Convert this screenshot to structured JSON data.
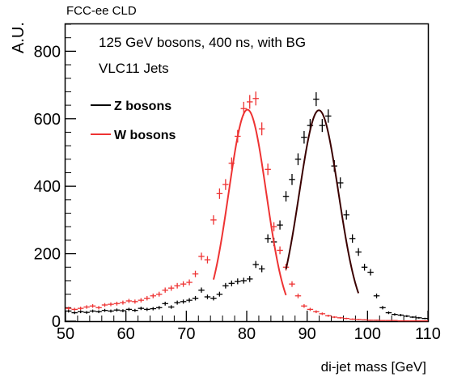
{
  "chart_data": {
    "type": "scatter",
    "header": "FCC-ee CLD",
    "xlabel": "di-jet mass [GeV]",
    "ylabel": "A.U.",
    "xlim": [
      50,
      110
    ],
    "ylim": [
      0,
      880
    ],
    "x_ticks": [
      50,
      60,
      70,
      80,
      90,
      100,
      110
    ],
    "y_ticks": [
      0,
      200,
      400,
      600,
      800
    ],
    "annotations": [
      "125 GeV bosons, 400 ns, with BG",
      "VLC11 Jets"
    ],
    "legend_position": "top-left",
    "bin_width": 1,
    "series": [
      {
        "name": "Z bosons",
        "color": "#000000",
        "fit_color": "#3a0000",
        "fit_range": [
          86.5,
          98.5
        ],
        "points": [
          [
            50.5,
            30
          ],
          [
            51.5,
            25
          ],
          [
            52.5,
            28
          ],
          [
            53.5,
            26
          ],
          [
            54.5,
            30
          ],
          [
            55.5,
            28
          ],
          [
            56.5,
            32
          ],
          [
            57.5,
            30
          ],
          [
            58.5,
            33
          ],
          [
            59.5,
            31
          ],
          [
            60.5,
            35
          ],
          [
            61.5,
            32
          ],
          [
            62.5,
            38
          ],
          [
            63.5,
            35
          ],
          [
            64.5,
            37
          ],
          [
            65.5,
            40
          ],
          [
            66.5,
            52
          ],
          [
            67.5,
            42
          ],
          [
            68.5,
            55
          ],
          [
            69.5,
            58
          ],
          [
            70.5,
            62
          ],
          [
            71.5,
            68
          ],
          [
            72.5,
            92
          ],
          [
            73.5,
            72
          ],
          [
            74.5,
            68
          ],
          [
            75.5,
            80
          ],
          [
            76.5,
            105
          ],
          [
            77.5,
            112
          ],
          [
            78.5,
            118
          ],
          [
            79.5,
            120
          ],
          [
            80.5,
            125
          ],
          [
            81.5,
            168
          ],
          [
            82.5,
            155
          ],
          [
            83.5,
            245
          ],
          [
            84.5,
            235
          ],
          [
            85.5,
            285
          ],
          [
            86.5,
            370
          ],
          [
            87.5,
            420
          ],
          [
            88.5,
            480
          ],
          [
            89.5,
            545
          ],
          [
            90.5,
            580
          ],
          [
            91.5,
            658
          ],
          [
            92.5,
            580
          ],
          [
            93.5,
            608
          ],
          [
            94.5,
            460
          ],
          [
            95.5,
            410
          ],
          [
            96.5,
            315
          ],
          [
            97.5,
            245
          ],
          [
            98.5,
            205
          ],
          [
            99.5,
            160
          ],
          [
            100.5,
            145
          ],
          [
            101.5,
            75
          ],
          [
            102.5,
            40
          ],
          [
            103.5,
            25
          ],
          [
            104.5,
            20
          ],
          [
            105.5,
            18
          ],
          [
            106.5,
            15
          ],
          [
            107.5,
            12
          ],
          [
            108.5,
            10
          ],
          [
            109.5,
            8
          ]
        ]
      },
      {
        "name": "W bosons",
        "color": "#ee3333",
        "fit_color": "#ee3333",
        "fit_range": [
          74.5,
          86.5
        ],
        "points": [
          [
            50.5,
            38
          ],
          [
            51.5,
            35
          ],
          [
            52.5,
            38
          ],
          [
            53.5,
            42
          ],
          [
            54.5,
            45
          ],
          [
            55.5,
            40
          ],
          [
            56.5,
            48
          ],
          [
            57.5,
            50
          ],
          [
            58.5,
            52
          ],
          [
            59.5,
            55
          ],
          [
            60.5,
            60
          ],
          [
            61.5,
            58
          ],
          [
            62.5,
            62
          ],
          [
            63.5,
            68
          ],
          [
            64.5,
            75
          ],
          [
            65.5,
            80
          ],
          [
            66.5,
            92
          ],
          [
            67.5,
            98
          ],
          [
            68.5,
            105
          ],
          [
            69.5,
            110
          ],
          [
            70.5,
            115
          ],
          [
            71.5,
            140
          ],
          [
            72.5,
            192
          ],
          [
            73.5,
            182
          ],
          [
            74.5,
            300
          ],
          [
            75.5,
            378
          ],
          [
            76.5,
            405
          ],
          [
            77.5,
            468
          ],
          [
            78.5,
            548
          ],
          [
            79.5,
            630
          ],
          [
            80.5,
            650
          ],
          [
            81.5,
            660
          ],
          [
            82.5,
            570
          ],
          [
            83.5,
            450
          ],
          [
            84.5,
            280
          ],
          [
            85.5,
            210
          ],
          [
            86.5,
            160
          ],
          [
            87.5,
            110
          ],
          [
            88.5,
            75
          ],
          [
            89.5,
            45
          ],
          [
            90.5,
            35
          ],
          [
            91.5,
            28
          ],
          [
            92.5,
            22
          ],
          [
            93.5,
            16
          ],
          [
            94.5,
            12
          ],
          [
            95.5,
            10
          ],
          [
            96.5,
            8
          ],
          [
            97.5,
            6
          ],
          [
            98.5,
            5
          ],
          [
            99.5,
            4
          ],
          [
            100.5,
            3
          ],
          [
            101.5,
            3
          ],
          [
            102.5,
            2
          ],
          [
            103.5,
            2
          ],
          [
            104.5,
            2
          ],
          [
            105.5,
            1
          ],
          [
            106.5,
            1
          ],
          [
            107.5,
            1
          ],
          [
            108.5,
            1
          ],
          [
            109.5,
            1
          ]
        ]
      }
    ]
  }
}
